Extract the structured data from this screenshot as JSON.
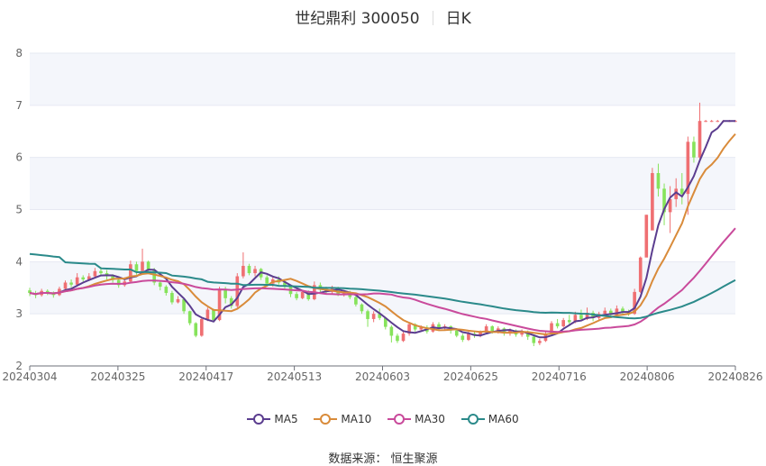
{
  "header": {
    "stock": "世纪鼎利 300050",
    "period": "日K"
  },
  "legend": [
    {
      "name": "MA5",
      "color": "#5b3d8f"
    },
    {
      "name": "MA10",
      "color": "#d98b3a"
    },
    {
      "name": "MA30",
      "color": "#c94a9b"
    },
    {
      "name": "MA60",
      "color": "#2b8a8a"
    }
  ],
  "source": "数据来源： 恒生聚源",
  "colors": {
    "up": "#ef6f72",
    "down": "#86e35b",
    "band": "#f4f6fb",
    "grid": "#e6e9f2"
  },
  "chart_data": {
    "type": "candlestick",
    "ylim": [
      2,
      8
    ],
    "yticks": [
      2,
      3,
      4,
      5,
      6,
      7,
      8
    ],
    "xticks": [
      "20240304",
      "20240325",
      "20240417",
      "20240513",
      "20240603",
      "20240625",
      "20240716",
      "20240806",
      "20240826"
    ],
    "num_bars": 120,
    "ohlc": [
      [
        3.45,
        3.4,
        3.5,
        3.34
      ],
      [
        3.4,
        3.36,
        3.44,
        3.3
      ],
      [
        3.36,
        3.44,
        3.48,
        3.33
      ],
      [
        3.44,
        3.4,
        3.47,
        3.36
      ],
      [
        3.4,
        3.36,
        3.43,
        3.31
      ],
      [
        3.36,
        3.48,
        3.52,
        3.34
      ],
      [
        3.48,
        3.6,
        3.64,
        3.45
      ],
      [
        3.6,
        3.56,
        3.66,
        3.51
      ],
      [
        3.56,
        3.7,
        3.78,
        3.54
      ],
      [
        3.7,
        3.66,
        3.74,
        3.62
      ],
      [
        3.66,
        3.72,
        3.78,
        3.63
      ],
      [
        3.72,
        3.82,
        3.88,
        3.7
      ],
      [
        3.82,
        3.78,
        3.9,
        3.74
      ],
      [
        3.78,
        3.72,
        3.84,
        3.66
      ],
      [
        3.72,
        3.65,
        3.76,
        3.6
      ],
      [
        3.65,
        3.55,
        3.68,
        3.5
      ],
      [
        3.55,
        3.62,
        3.7,
        3.52
      ],
      [
        3.62,
        3.95,
        4.02,
        3.6
      ],
      [
        3.95,
        3.82,
        4.0,
        3.75
      ],
      [
        3.82,
        4.0,
        4.25,
        3.8
      ],
      [
        4.0,
        3.85,
        4.02,
        3.78
      ],
      [
        3.85,
        3.6,
        3.88,
        3.55
      ],
      [
        3.6,
        3.52,
        3.62,
        3.45
      ],
      [
        3.52,
        3.4,
        3.55,
        3.35
      ],
      [
        3.4,
        3.22,
        3.44,
        3.18
      ],
      [
        3.22,
        3.28,
        3.34,
        3.2
      ],
      [
        3.28,
        3.05,
        3.3,
        3.0
      ],
      [
        3.05,
        2.82,
        3.06,
        2.78
      ],
      [
        2.82,
        2.58,
        2.84,
        2.55
      ],
      [
        2.58,
        2.9,
        2.94,
        2.56
      ],
      [
        2.9,
        3.08,
        3.12,
        2.86
      ],
      [
        3.08,
        2.88,
        3.1,
        2.84
      ],
      [
        2.88,
        3.48,
        3.52,
        2.86
      ],
      [
        3.48,
        3.3,
        3.52,
        3.2
      ],
      [
        3.3,
        3.15,
        3.34,
        3.1
      ],
      [
        3.15,
        3.72,
        3.78,
        3.12
      ],
      [
        3.72,
        3.92,
        4.18,
        3.68
      ],
      [
        3.92,
        3.78,
        3.96,
        3.74
      ],
      [
        3.78,
        3.86,
        3.92,
        3.72
      ],
      [
        3.86,
        3.7,
        3.88,
        3.65
      ],
      [
        3.7,
        3.58,
        3.74,
        3.54
      ],
      [
        3.58,
        3.66,
        3.7,
        3.52
      ],
      [
        3.66,
        3.6,
        3.72,
        3.56
      ],
      [
        3.6,
        3.52,
        3.64,
        3.48
      ],
      [
        3.52,
        3.38,
        3.55,
        3.32
      ],
      [
        3.38,
        3.3,
        3.42,
        3.26
      ],
      [
        3.3,
        3.42,
        3.46,
        3.28
      ],
      [
        3.42,
        3.28,
        3.45,
        3.25
      ],
      [
        3.28,
        3.55,
        3.62,
        3.26
      ],
      [
        3.55,
        3.48,
        3.6,
        3.42
      ],
      [
        3.48,
        3.42,
        3.52,
        3.38
      ],
      [
        3.42,
        3.5,
        3.54,
        3.38
      ],
      [
        3.5,
        3.38,
        3.52,
        3.34
      ],
      [
        3.38,
        3.42,
        3.46,
        3.33
      ],
      [
        3.42,
        3.32,
        3.44,
        3.28
      ],
      [
        3.32,
        3.18,
        3.34,
        3.14
      ],
      [
        3.18,
        3.05,
        3.2,
        3.0
      ],
      [
        3.05,
        2.9,
        3.08,
        2.75
      ],
      [
        2.9,
        3.0,
        3.05,
        2.84
      ],
      [
        3.0,
        2.92,
        3.1,
        2.88
      ],
      [
        2.92,
        2.75,
        2.94,
        2.7
      ],
      [
        2.75,
        2.58,
        2.78,
        2.45
      ],
      [
        2.58,
        2.48,
        2.62,
        2.44
      ],
      [
        2.48,
        2.62,
        2.66,
        2.46
      ],
      [
        2.62,
        2.8,
        2.84,
        2.58
      ],
      [
        2.8,
        2.7,
        2.82,
        2.66
      ],
      [
        2.7,
        2.74,
        2.78,
        2.66
      ],
      [
        2.74,
        2.66,
        2.78,
        2.62
      ],
      [
        2.66,
        2.8,
        2.84,
        2.64
      ],
      [
        2.8,
        2.72,
        2.84,
        2.68
      ],
      [
        2.72,
        2.76,
        2.8,
        2.68
      ],
      [
        2.76,
        2.68,
        2.78,
        2.62
      ],
      [
        2.68,
        2.58,
        2.7,
        2.55
      ],
      [
        2.58,
        2.5,
        2.62,
        2.46
      ],
      [
        2.5,
        2.62,
        2.66,
        2.48
      ],
      [
        2.62,
        2.58,
        2.66,
        2.54
      ],
      [
        2.58,
        2.64,
        2.68,
        2.55
      ],
      [
        2.64,
        2.76,
        2.8,
        2.62
      ],
      [
        2.76,
        2.66,
        2.78,
        2.62
      ],
      [
        2.66,
        2.72,
        2.76,
        2.62
      ],
      [
        2.72,
        2.64,
        2.74,
        2.58
      ],
      [
        2.64,
        2.68,
        2.72,
        2.58
      ],
      [
        2.68,
        2.6,
        2.7,
        2.56
      ],
      [
        2.6,
        2.66,
        2.7,
        2.56
      ],
      [
        2.66,
        2.56,
        2.68,
        2.5
      ],
      [
        2.56,
        2.44,
        2.58,
        2.38
      ],
      [
        2.44,
        2.48,
        2.52,
        2.4
      ],
      [
        2.48,
        2.62,
        2.66,
        2.46
      ],
      [
        2.62,
        2.82,
        2.86,
        2.6
      ],
      [
        2.82,
        2.76,
        2.9,
        2.72
      ],
      [
        2.76,
        2.88,
        2.92,
        2.74
      ],
      [
        2.88,
        2.84,
        2.98,
        2.8
      ],
      [
        2.84,
        2.98,
        3.04,
        2.82
      ],
      [
        2.98,
        2.9,
        3.08,
        2.86
      ],
      [
        2.9,
        3.02,
        3.12,
        2.88
      ],
      [
        3.02,
        2.92,
        3.06,
        2.86
      ],
      [
        2.92,
        3.0,
        3.04,
        2.88
      ],
      [
        3.0,
        3.06,
        3.12,
        2.96
      ],
      [
        3.06,
        2.98,
        3.1,
        2.94
      ],
      [
        2.98,
        3.1,
        3.16,
        2.96
      ],
      [
        3.1,
        3.04,
        3.14,
        3.0
      ],
      [
        3.04,
        3.0,
        3.08,
        2.96
      ],
      [
        3.0,
        3.42,
        3.48,
        2.98
      ],
      [
        3.42,
        4.08,
        4.1,
        3.4
      ],
      [
        4.08,
        4.9,
        4.9,
        4.6
      ],
      [
        4.6,
        5.7,
        5.8,
        5.6
      ],
      [
        5.7,
        5.4,
        5.88,
        5.25
      ],
      [
        5.4,
        4.95,
        5.5,
        4.7
      ],
      [
        4.95,
        5.2,
        5.45,
        4.55
      ],
      [
        5.2,
        5.4,
        5.6,
        5.05
      ],
      [
        5.4,
        5.3,
        5.7,
        5.1
      ],
      [
        5.3,
        6.3,
        6.4,
        4.9
      ],
      [
        6.3,
        6.0,
        6.4,
        5.9
      ],
      [
        6.0,
        6.7,
        7.05,
        5.95
      ],
      [
        6.7,
        6.7,
        6.72,
        6.68
      ],
      [
        6.7,
        6.7,
        6.72,
        6.68
      ],
      [
        6.7,
        6.7,
        6.72,
        6.68
      ],
      [
        6.7,
        6.7,
        6.72,
        6.68
      ],
      [
        6.7,
        6.7,
        6.72,
        6.68
      ],
      [
        6.7,
        6.7,
        6.72,
        6.68
      ]
    ],
    "ma60_start": [
      4.15,
      4.05,
      3.95,
      3.88,
      3.82,
      3.75,
      3.68,
      3.62,
      3.55,
      3.5
    ]
  }
}
